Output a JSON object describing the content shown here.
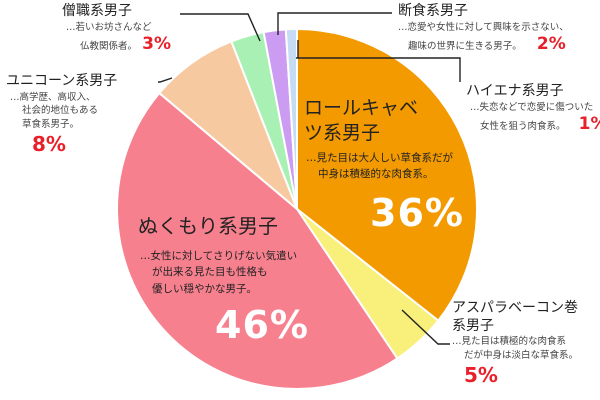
{
  "chart_data": {
    "type": "pie",
    "slices": [
      {
        "label": "ロールキャベツ系男子",
        "value": 36,
        "value_label": "36%",
        "desc": [
          "…見た目は大人しい草食系だが",
          "中身は積極的な肉食系。"
        ],
        "color": "#f29a00"
      },
      {
        "label": "アスパラベーコン巻系男子",
        "label_lines": [
          "アスパラベーコン巻",
          "系男子"
        ],
        "value": 5,
        "value_label": "5%",
        "desc": [
          "…見た目は積極的な肉食系",
          "だが中身は淡白な草食系。"
        ],
        "color": "#f8f07a"
      },
      {
        "label": "ぬくもり系男子",
        "value": 46,
        "value_label": "46%",
        "desc": [
          "…女性に対してさりげない気遣い",
          "が出来る見た目も性格も",
          "優しい穏やかな男子。"
        ],
        "color": "#f7808f"
      },
      {
        "label": "ユニコーン系男子",
        "value": 8,
        "value_label": "8%",
        "desc": [
          "…高学歴、高収入、",
          "社会的地位もある",
          "草食系男子。"
        ],
        "color": "#f7c9a0"
      },
      {
        "label": "僧職系男子",
        "value": 3,
        "value_label": "3%",
        "desc": [
          "…若いお坊さんなど",
          "仏教関係者。"
        ],
        "color": "#a8f0b4"
      },
      {
        "label": "断食系男子",
        "value": 2,
        "value_label": "2%",
        "desc": [
          "…恋愛や女性に対して興味を示さない、",
          "趣味の世界に生きる男子。"
        ],
        "color": "#cc9cf2"
      },
      {
        "label": "ハイエナ系男子",
        "value": 1,
        "value_label": "1%",
        "desc": [
          "…失恋などで恋愛に傷ついた",
          "女性を狙う肉食系。"
        ],
        "color": "#c6dcf4"
      }
    ],
    "title": "",
    "legend": "none"
  }
}
